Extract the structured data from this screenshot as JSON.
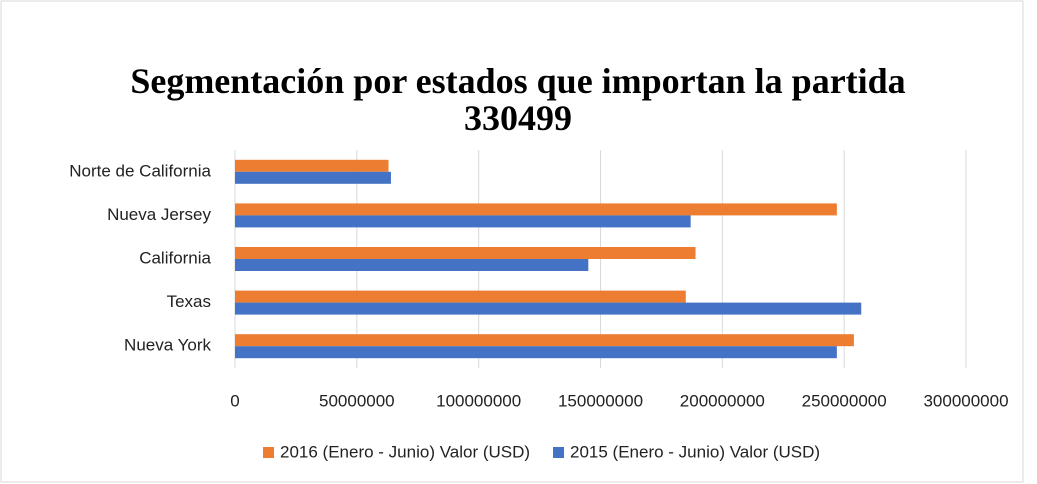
{
  "chart_data": {
    "type": "hbar",
    "title": "Segmentación por estados que importan la partida 330499",
    "categories": [
      "Norte de California",
      "Nueva Jersey",
      "California",
      "Texas",
      "Nueva York"
    ],
    "series": [
      {
        "name": "2016 (Enero - Junio) Valor (USD)",
        "color": "#ed7d31",
        "values": [
          63000000,
          247000000,
          189000000,
          185000000,
          254000000
        ]
      },
      {
        "name": "2015 (Enero - Junio) Valor (USD)",
        "color": "#4472c4",
        "values": [
          64000000,
          187000000,
          145000000,
          257000000,
          247000000
        ]
      }
    ],
    "xlim": [
      0,
      300000000
    ],
    "xticks": [
      0,
      50000000,
      100000000,
      150000000,
      200000000,
      250000000,
      300000000
    ],
    "grid": true,
    "legend": "bottom"
  }
}
